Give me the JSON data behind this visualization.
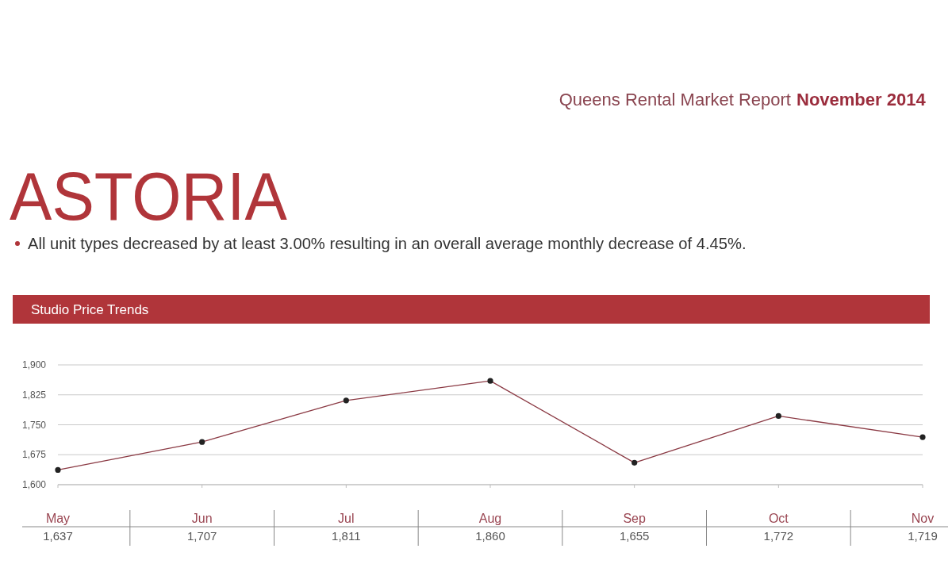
{
  "chart_data": {
    "type": "line",
    "title": "ASTORIA",
    "subtitle": "All unit types decreased by at least 3.00% resulting in an overall average monthly decrease of 4.45%.",
    "annotations": [
      "Queens Rental Market Report",
      "November 2014",
      "Studio Price Trends"
    ],
    "categories": [
      "May",
      "Jun",
      "Jul",
      "Aug",
      "Sep",
      "Oct",
      "Nov"
    ],
    "series": [
      {
        "color": "#8b3a44",
        "values": [
          1637,
          1707,
          1811,
          1860,
          1655,
          1772,
          1719
        ],
        "value_labels": [
          "1,637",
          "1,707",
          "1,811",
          "1,860",
          "1,655",
          "1,772",
          "1,719"
        ]
      }
    ],
    "ylim": [
      1600,
      1900
    ],
    "yticks": [
      {
        "value": 1600,
        "label": "1,600"
      },
      {
        "value": 1675,
        "label": "1,675"
      },
      {
        "value": 1750,
        "label": "1,750"
      },
      {
        "value": 1825,
        "label": "1,825"
      },
      {
        "value": 1900,
        "label": "1,900"
      }
    ],
    "grid": "y",
    "marker": "circle",
    "line_style": "solid"
  }
}
